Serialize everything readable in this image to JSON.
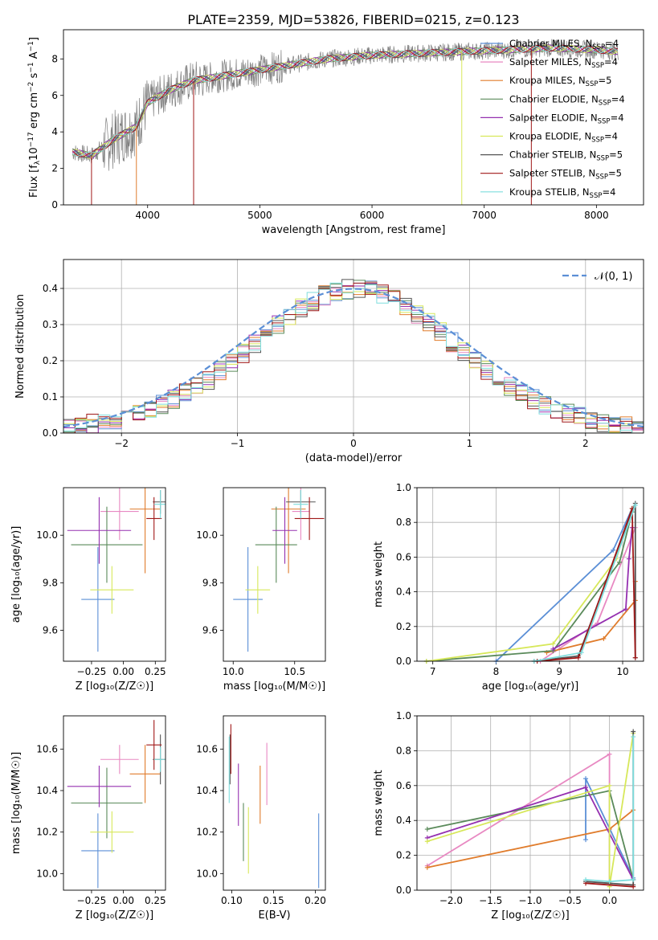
{
  "title": "PLATE=2359, MJD=53826, FIBERID=0215, z=0.123",
  "colors": {
    "Chabrier MILES": "#5b8fd6",
    "Salpeter MILES": "#e889c2",
    "Kroupa MILES": "#e07c2c",
    "Chabrier ELODIE": "#5a8a5a",
    "Salpeter ELODIE": "#9530b0",
    "Kroupa ELODIE": "#d7e85a",
    "Chabrier STELIB": "#555555",
    "Salpeter STELIB": "#a01818",
    "Kroupa STELIB": "#7fdede",
    "gauss": "#5b8fd6"
  },
  "chart_data": [
    {
      "id": "spectrum",
      "type": "line",
      "xlabel": "wavelength [Angstrom, rest frame]",
      "ylabel_main": "Flux [f",
      "ylabel_sub": "λ",
      "ylabel_rest": "10",
      "ylabel_exp": "−17",
      "ylabel_units": " erg cm",
      "ylabel_exp2": "−2",
      "ylabel_s": " s",
      "ylabel_exp3": "−1",
      "ylabel_A": " A",
      "ylabel_exp4": "−1",
      "ylabel_end": "]",
      "xlim": [
        3250,
        8420
      ],
      "ylim": [
        0,
        9.6
      ],
      "xticks": [
        "4000",
        "5000",
        "6000",
        "7000",
        "8000"
      ],
      "yticks": [
        "0",
        "2",
        "4",
        "6",
        "8"
      ],
      "continuum": {
        "x": [
          3330,
          3500,
          3700,
          3900,
          4000,
          4200,
          4400,
          4700,
          5000,
          5300,
          5600,
          6000,
          6400,
          6800,
          7200,
          7600,
          8000,
          8200
        ],
        "y": [
          2.9,
          2.7,
          3.6,
          4.3,
          5.6,
          6.3,
          6.8,
          7.1,
          7.4,
          7.7,
          8.0,
          8.2,
          8.3,
          8.4,
          8.5,
          8.6,
          8.5,
          8.4
        ]
      },
      "legend": [
        {
          "name": "Chabrier MILES",
          "base": "Chabrier MILES, N",
          "sub": "SSP",
          "eq": "=4"
        },
        {
          "name": "Salpeter MILES",
          "base": "Salpeter MILES, N",
          "sub": "SSP",
          "eq": "=4"
        },
        {
          "name": "Kroupa MILES",
          "base": "Kroupa MILES, N",
          "sub": "SSP",
          "eq": "=5"
        },
        {
          "name": "Chabrier ELODIE",
          "base": "Chabrier ELODIE, N",
          "sub": "SSP",
          "eq": "=4"
        },
        {
          "name": "Salpeter ELODIE",
          "base": "Salpeter ELODIE, N",
          "sub": "SSP",
          "eq": "=4"
        },
        {
          "name": "Kroupa ELODIE",
          "base": "Kroupa ELODIE, N",
          "sub": "SSP",
          "eq": "=4"
        },
        {
          "name": "Chabrier STELIB",
          "base": "Chabrier STELIB, N",
          "sub": "SSP",
          "eq": "=5"
        },
        {
          "name": "Salpeter STELIB",
          "base": "Salpeter STELIB, N",
          "sub": "SSP",
          "eq": "=5"
        },
        {
          "name": "Kroupa STELIB",
          "base": "Kroupa STELIB, N",
          "sub": "SSP",
          "eq": "=4"
        }
      ]
    },
    {
      "id": "residuals",
      "type": "histogram",
      "xlabel": "(data-model)/error",
      "ylabel": "Normed distribution",
      "xlim": [
        -2.5,
        2.5
      ],
      "ylim": [
        0,
        0.48
      ],
      "xticks": [
        "−2",
        "−1",
        "0",
        "1",
        "2"
      ],
      "yticks": [
        "0.0",
        "0.1",
        "0.2",
        "0.3",
        "0.4"
      ],
      "bin_width": 0.1,
      "gauss_label": "𝒩(0, 1)",
      "grid": true
    },
    {
      "id": "age_vs_Z",
      "type": "errorbar",
      "xlabel": "Z [log₁₀(Z/Z☉)]",
      "ylabel": "age  [log₁₀(age/yr)]",
      "xlim": [
        -0.47,
        0.33
      ],
      "ylim": [
        9.47,
        10.2
      ],
      "xticks": [
        "−0.25",
        "0.00",
        "0.25"
      ],
      "yticks": [
        "9.6",
        "9.8",
        "10.0"
      ],
      "points": [
        {
          "s": "Chabrier MILES",
          "x": -0.2,
          "xe": 0.13,
          "y": 9.73,
          "ye": 0.22
        },
        {
          "s": "Salpeter MILES",
          "x": -0.03,
          "xe": 0.15,
          "y": 10.1,
          "ye": 0.12
        },
        {
          "s": "Kroupa MILES",
          "x": 0.17,
          "xe": 0.12,
          "y": 10.11,
          "ye": 0.27
        },
        {
          "s": "Chabrier ELODIE",
          "x": -0.13,
          "xe": 0.28,
          "y": 9.96,
          "ye": 0.16
        },
        {
          "s": "Salpeter ELODIE",
          "x": -0.19,
          "xe": 0.25,
          "y": 10.02,
          "ye": 0.14
        },
        {
          "s": "Kroupa ELODIE",
          "x": -0.09,
          "xe": 0.17,
          "y": 9.77,
          "ye": 0.1
        },
        {
          "s": "Chabrier STELIB",
          "x": 0.29,
          "xe": 0.06,
          "y": 10.14,
          "ye": 0.05
        },
        {
          "s": "Salpeter STELIB",
          "x": 0.24,
          "xe": 0.06,
          "y": 10.07,
          "ye": 0.09
        },
        {
          "s": "Kroupa STELIB",
          "x": 0.29,
          "xe": 0.05,
          "y": 10.13,
          "ye": 0.06
        }
      ]
    },
    {
      "id": "age_vs_mass",
      "type": "errorbar",
      "xlabel": "mass [log₁₀(M/M☉)]",
      "ylabel": "",
      "xlim": [
        9.92,
        10.75
      ],
      "ylim": [
        9.47,
        10.2
      ],
      "xticks": [
        "10.0",
        "10.5"
      ],
      "yticks": [
        "9.6",
        "9.8",
        "10.0"
      ],
      "points": [
        {
          "s": "Chabrier MILES",
          "x": 10.12,
          "xe": 0.12,
          "y": 9.73,
          "ye": 0.22
        },
        {
          "s": "Salpeter MILES",
          "x": 10.55,
          "xe": 0.07,
          "y": 10.1,
          "ye": 0.12
        },
        {
          "s": "Kroupa MILES",
          "x": 10.45,
          "xe": 0.14,
          "y": 10.11,
          "ye": 0.27
        },
        {
          "s": "Chabrier ELODIE",
          "x": 10.35,
          "xe": 0.17,
          "y": 9.96,
          "ye": 0.16
        },
        {
          "s": "Salpeter ELODIE",
          "x": 10.42,
          "xe": 0.1,
          "y": 10.02,
          "ye": 0.14
        },
        {
          "s": "Kroupa ELODIE",
          "x": 10.2,
          "xe": 0.1,
          "y": 9.77,
          "ye": 0.1
        },
        {
          "s": "Chabrier STELIB",
          "x": 10.55,
          "xe": 0.12,
          "y": 10.14,
          "ye": 0.05
        },
        {
          "s": "Salpeter STELIB",
          "x": 10.62,
          "xe": 0.12,
          "y": 10.07,
          "ye": 0.09
        },
        {
          "s": "Kroupa STELIB",
          "x": 10.55,
          "xe": 0.06,
          "y": 10.13,
          "ye": 0.06
        }
      ]
    },
    {
      "id": "mw_vs_age",
      "type": "line",
      "xlabel": "age  [log₁₀(age/yr)]",
      "ylabel": "mass weight",
      "xlim": [
        6.75,
        10.33
      ],
      "ylim": [
        0,
        1
      ],
      "xticks": [
        "7",
        "8",
        "9",
        "10"
      ],
      "yticks": [
        "0.0",
        "0.2",
        "0.4",
        "0.6",
        "0.8",
        "1.0"
      ],
      "grid": true,
      "series": [
        {
          "s": "Chabrier MILES",
          "x": [
            8.0,
            9.85,
            10.15
          ],
          "y": [
            0.0,
            0.64,
            0.88
          ]
        },
        {
          "s": "Salpeter MILES",
          "x": [
            8.7,
            9.6,
            10.2
          ],
          "y": [
            0.0,
            0.22,
            0.77
          ]
        },
        {
          "s": "Kroupa MILES",
          "x": [
            8.8,
            9.7,
            10.2,
            10.2
          ],
          "y": [
            0.05,
            0.13,
            0.35,
            0.46
          ]
        },
        {
          "s": "Chabrier ELODIE",
          "x": [
            6.9,
            8.9,
            9.95,
            10.15
          ],
          "y": [
            0.0,
            0.06,
            0.57,
            0.86
          ]
        },
        {
          "s": "Salpeter ELODIE",
          "x": [
            8.9,
            10.05,
            10.1,
            10.15
          ],
          "y": [
            0.07,
            0.3,
            0.59,
            0.77
          ]
        },
        {
          "s": "Kroupa ELODIE",
          "x": [
            6.9,
            8.9,
            9.9,
            10.15
          ],
          "y": [
            0.0,
            0.1,
            0.59,
            0.88
          ]
        },
        {
          "s": "Chabrier STELIB",
          "x": [
            8.6,
            9.3,
            10.2,
            10.2
          ],
          "y": [
            0.0,
            0.03,
            0.91,
            0.02
          ]
        },
        {
          "s": "Salpeter STELIB",
          "x": [
            8.65,
            9.3,
            10.15,
            10.2
          ],
          "y": [
            0.0,
            0.02,
            0.88,
            0.02
          ]
        },
        {
          "s": "Kroupa STELIB",
          "x": [
            8.6,
            9.35,
            10.2
          ],
          "y": [
            0.0,
            0.05,
            0.9
          ]
        }
      ]
    },
    {
      "id": "mass_vs_Z",
      "type": "errorbar",
      "xlabel": "Z [log₁₀(Z/Z☉)]",
      "ylabel": "mass [log₁₀(M/M☉)]",
      "xlim": [
        -0.47,
        0.33
      ],
      "ylim": [
        9.92,
        10.76
      ],
      "xticks": [
        "−0.25",
        "0.00",
        "0.25"
      ],
      "yticks": [
        "10.0",
        "10.2",
        "10.4",
        "10.6"
      ],
      "points": [
        {
          "s": "Chabrier MILES",
          "x": -0.2,
          "xe": 0.13,
          "y": 10.11,
          "ye": 0.18
        },
        {
          "s": "Salpeter MILES",
          "x": -0.03,
          "xe": 0.15,
          "y": 10.55,
          "ye": 0.07
        },
        {
          "s": "Kroupa MILES",
          "x": 0.17,
          "xe": 0.12,
          "y": 10.48,
          "ye": 0.14
        },
        {
          "s": "Chabrier ELODIE",
          "x": -0.13,
          "xe": 0.28,
          "y": 10.34,
          "ye": 0.17
        },
        {
          "s": "Salpeter ELODIE",
          "x": -0.19,
          "xe": 0.25,
          "y": 10.42,
          "ye": 0.1
        },
        {
          "s": "Kroupa ELODIE",
          "x": -0.09,
          "xe": 0.17,
          "y": 10.2,
          "ye": 0.1
        },
        {
          "s": "Chabrier STELIB",
          "x": 0.29,
          "xe": 0.06,
          "y": 10.55,
          "ye": 0.12
        },
        {
          "s": "Salpeter STELIB",
          "x": 0.24,
          "xe": 0.06,
          "y": 10.62,
          "ye": 0.12
        },
        {
          "s": "Kroupa STELIB",
          "x": 0.29,
          "xe": 0.05,
          "y": 10.55,
          "ye": 0.06
        }
      ]
    },
    {
      "id": "mass_vs_EBV",
      "type": "errorbar",
      "xlabel": "E(B-V)",
      "ylabel": "",
      "xlim": [
        0.09,
        0.212
      ],
      "ylim": [
        9.92,
        10.76
      ],
      "xticks": [
        "0.10",
        "0.15",
        "0.20"
      ],
      "yticks": [
        "10.0",
        "10.2",
        "10.4",
        "10.6"
      ],
      "points": [
        {
          "s": "Chabrier MILES",
          "x": 0.204,
          "xe": 0,
          "y": 10.11,
          "ye": 0.18
        },
        {
          "s": "Salpeter MILES",
          "x": 0.142,
          "xe": 0,
          "y": 10.48,
          "ye": 0.15
        },
        {
          "s": "Kroupa MILES",
          "x": 0.134,
          "xe": 0,
          "y": 10.38,
          "ye": 0.14
        },
        {
          "s": "Chabrier ELODIE",
          "x": 0.114,
          "xe": 0,
          "y": 10.2,
          "ye": 0.14
        },
        {
          "s": "Salpeter ELODIE",
          "x": 0.108,
          "xe": 0,
          "y": 10.38,
          "ye": 0.15
        },
        {
          "s": "Kroupa ELODIE",
          "x": 0.12,
          "xe": 0,
          "y": 10.16,
          "ye": 0.16
        },
        {
          "s": "Chabrier STELIB",
          "x": 0.098,
          "xe": 0,
          "y": 10.55,
          "ye": 0.12
        },
        {
          "s": "Salpeter STELIB",
          "x": 0.099,
          "xe": 0,
          "y": 10.6,
          "ye": 0.12
        },
        {
          "s": "Kroupa STELIB",
          "x": 0.097,
          "xe": 0,
          "y": 10.5,
          "ye": 0.16
        }
      ]
    },
    {
      "id": "mw_vs_Z",
      "type": "line",
      "xlabel": "Z [log₁₀(Z/Z☉)]",
      "ylabel": "mass weight",
      "xlim": [
        -2.43,
        0.43
      ],
      "ylim": [
        0,
        1
      ],
      "xticks": [
        "−2.0",
        "−1.5",
        "−1.0",
        "−0.5",
        "0.0"
      ],
      "yticks": [
        "0.0",
        "0.2",
        "0.4",
        "0.6",
        "0.8",
        "1.0"
      ],
      "grid": true,
      "series": [
        {
          "s": "Chabrier MILES",
          "x": [
            -0.3,
            -0.3,
            0.3
          ],
          "y": [
            0.29,
            0.64,
            0.07
          ]
        },
        {
          "s": "Salpeter MILES",
          "x": [
            -2.3,
            0.0,
            0.0
          ],
          "y": [
            0.14,
            0.78,
            0.04
          ]
        },
        {
          "s": "Kroupa MILES",
          "x": [
            -2.3,
            0.0,
            0.3
          ],
          "y": [
            0.13,
            0.35,
            0.46
          ]
        },
        {
          "s": "Chabrier ELODIE",
          "x": [
            -2.3,
            0.0,
            0.3
          ],
          "y": [
            0.35,
            0.57,
            0.06
          ]
        },
        {
          "s": "Salpeter ELODIE",
          "x": [
            -2.3,
            -0.3,
            0.3
          ],
          "y": [
            0.3,
            0.59,
            0.06
          ]
        },
        {
          "s": "Kroupa ELODIE",
          "x": [
            -2.3,
            0.0,
            0.0,
            0.3
          ],
          "y": [
            0.28,
            0.6,
            0.02,
            0.9
          ]
        },
        {
          "s": "Chabrier STELIB",
          "x": [
            -0.3,
            0.3,
            0.3
          ],
          "y": [
            0.05,
            0.03,
            0.91
          ]
        },
        {
          "s": "Salpeter STELIB",
          "x": [
            -0.3,
            0.3
          ],
          "y": [
            0.04,
            0.02
          ]
        },
        {
          "s": "Kroupa STELIB",
          "x": [
            -0.3,
            0.0,
            0.3,
            0.3
          ],
          "y": [
            0.06,
            0.05,
            0.06,
            0.88
          ]
        }
      ]
    }
  ]
}
